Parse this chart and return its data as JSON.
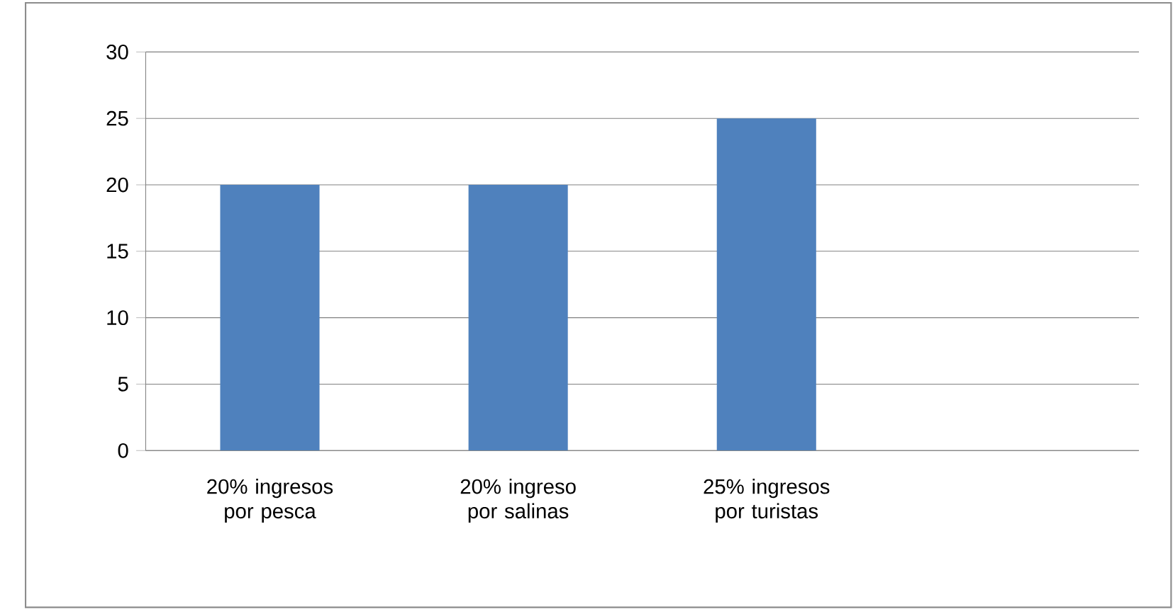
{
  "chart_data": {
    "type": "bar",
    "categories": [
      "20%  ingresos por pesca",
      "20%  ingreso por salinas",
      "25%  ingresos por turistas",
      null
    ],
    "values": [
      20,
      20,
      25,
      null
    ],
    "color": "#4f81bd",
    "ylim": [
      0,
      30
    ],
    "yticks": [
      0,
      5,
      10,
      15,
      20,
      25,
      30
    ],
    "grid": "y"
  }
}
